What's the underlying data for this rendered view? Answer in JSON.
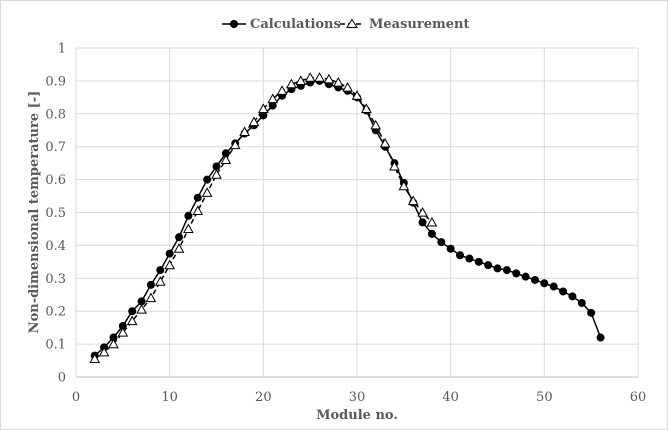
{
  "chart_data": {
    "type": "line",
    "title": "",
    "xlabel": "Module no.",
    "ylabel": "Non-dimensional temperature [-]",
    "xlim": [
      0,
      60
    ],
    "ylim": [
      0,
      1
    ],
    "xticks": [
      0,
      10,
      20,
      30,
      40,
      50,
      60
    ],
    "yticks": [
      0,
      0.1,
      0.2,
      0.3,
      0.4,
      0.5,
      0.6,
      0.7,
      0.8,
      0.9,
      1
    ],
    "xtick_labels": [
      "0",
      "10",
      "20",
      "30",
      "40",
      "50",
      "60"
    ],
    "ytick_labels": [
      "0",
      "0.1",
      "0.2",
      "0.3",
      "0.4",
      "0.5",
      "0.6",
      "0.7",
      "0.8",
      "0.9",
      "1"
    ],
    "grid": true,
    "legend_position": "top-center",
    "series": [
      {
        "name": "Calculations",
        "marker": "filled-circle",
        "line": "solid",
        "color": "#000000",
        "x": [
          2,
          3,
          4,
          5,
          6,
          7,
          8,
          9,
          10,
          11,
          12,
          13,
          14,
          15,
          16,
          17,
          18,
          19,
          20,
          21,
          22,
          23,
          24,
          25,
          26,
          27,
          28,
          29,
          30,
          31,
          32,
          33,
          34,
          35,
          36,
          37,
          38,
          39,
          40,
          41,
          42,
          43,
          44,
          45,
          46,
          47,
          48,
          49,
          50,
          51,
          52,
          53,
          54,
          55,
          56
        ],
        "y": [
          0.065,
          0.09,
          0.12,
          0.155,
          0.2,
          0.23,
          0.28,
          0.325,
          0.375,
          0.425,
          0.49,
          0.545,
          0.6,
          0.64,
          0.68,
          0.71,
          0.74,
          0.765,
          0.795,
          0.825,
          0.855,
          0.875,
          0.885,
          0.895,
          0.9,
          0.89,
          0.88,
          0.87,
          0.85,
          0.81,
          0.75,
          0.7,
          0.65,
          0.59,
          0.53,
          0.47,
          0.435,
          0.41,
          0.39,
          0.37,
          0.36,
          0.35,
          0.34,
          0.33,
          0.325,
          0.315,
          0.305,
          0.295,
          0.285,
          0.275,
          0.26,
          0.245,
          0.225,
          0.195,
          0.12
        ]
      },
      {
        "name": "Measurement",
        "marker": "open-triangle",
        "line": "dashed",
        "color": "#000000",
        "x": [
          2,
          3,
          4,
          5,
          6,
          7,
          8,
          9,
          10,
          11,
          12,
          13,
          14,
          15,
          16,
          17,
          18,
          19,
          20,
          21,
          22,
          23,
          24,
          25,
          26,
          27,
          28,
          29,
          30,
          31,
          32,
          33,
          34,
          35,
          36,
          37,
          38
        ],
        "y": [
          0.055,
          0.075,
          0.1,
          0.135,
          0.17,
          0.205,
          0.24,
          0.29,
          0.34,
          0.39,
          0.45,
          0.505,
          0.56,
          0.615,
          0.66,
          0.705,
          0.745,
          0.775,
          0.815,
          0.845,
          0.87,
          0.89,
          0.9,
          0.91,
          0.91,
          0.905,
          0.895,
          0.88,
          0.855,
          0.815,
          0.765,
          0.71,
          0.64,
          0.58,
          0.535,
          0.5,
          0.47
        ]
      }
    ]
  }
}
